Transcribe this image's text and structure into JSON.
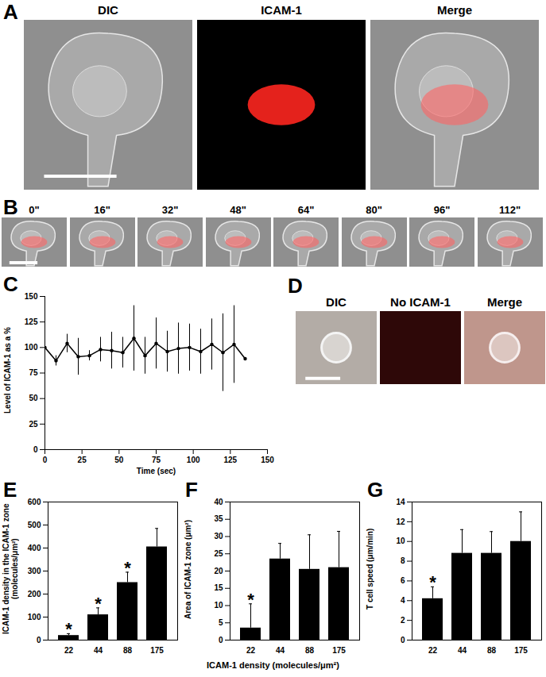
{
  "image_panels": [
    {
      "label": "A",
      "columns": [
        "DIC",
        "ICAM-1",
        "Merge"
      ]
    },
    {
      "label": "B",
      "times": [
        "0\"",
        "16\"",
        "32\"",
        "48\"",
        "64\"",
        "80\"",
        "96\"",
        "112\""
      ]
    },
    {
      "label": "D",
      "columns": [
        "DIC",
        "No ICAM-1",
        "Merge"
      ]
    }
  ],
  "chart_data": [
    {
      "type": "line",
      "title": "C",
      "x_label": "Time (sec)",
      "y_label": "Level of ICAM-1 as a %",
      "x": [
        0,
        7.5,
        15,
        22.5,
        30,
        37.5,
        45,
        52.5,
        60,
        67.5,
        75,
        82.5,
        90,
        97.5,
        105,
        112.5,
        120,
        127.5,
        135
      ],
      "values": [
        100,
        87,
        104,
        91,
        92,
        98,
        97,
        95,
        109,
        92,
        104,
        96,
        99,
        100,
        96,
        103,
        95,
        103,
        89
      ],
      "errors": [
        0,
        5,
        9,
        18,
        5,
        12,
        18,
        15,
        32,
        18,
        25,
        20,
        25,
        23,
        22,
        25,
        38,
        38,
        0
      ],
      "xlim": [
        0,
        150
      ],
      "xticks": [
        0,
        25,
        50,
        75,
        100,
        125,
        150
      ],
      "ylim": [
        0,
        150
      ],
      "yticks": [
        0,
        25,
        50,
        75,
        100,
        125,
        150
      ],
      "color": "#000000",
      "marker": "dot"
    },
    {
      "type": "bar",
      "title": "E",
      "y_label": "ICAM-1 density in the ICAM-1 zone (molecules/μm²)",
      "categories": [
        "22",
        "44",
        "88",
        "175"
      ],
      "values": [
        20,
        110,
        250,
        405
      ],
      "errors": [
        8,
        30,
        45,
        80
      ],
      "ylim": [
        0,
        600
      ],
      "yticks": [
        0,
        100,
        200,
        300,
        400,
        500,
        600
      ],
      "color": "#000000",
      "annotations": [
        {
          "category": "22",
          "text": "*"
        },
        {
          "category": "44",
          "text": "*"
        },
        {
          "category": "88",
          "text": "*"
        }
      ]
    },
    {
      "type": "bar",
      "title": "F",
      "y_label": "Area of ICAM-1 zone (μm²)",
      "x_label": "ICAM-1 density (molecules/μm²)",
      "categories": [
        "22",
        "44",
        "88",
        "175"
      ],
      "values": [
        3.5,
        23.5,
        20.5,
        21
      ],
      "errors": [
        7,
        4.5,
        10,
        10.5
      ],
      "ylim": [
        0,
        40
      ],
      "yticks": [
        0,
        5,
        10,
        15,
        20,
        25,
        30,
        35,
        40
      ],
      "color": "#000000",
      "annotations": [
        {
          "category": "22",
          "text": "*"
        }
      ]
    },
    {
      "type": "bar",
      "title": "G",
      "y_label": "T cell speed (μm/min)",
      "categories": [
        "22",
        "44",
        "88",
        "175"
      ],
      "values": [
        4.2,
        8.8,
        8.8,
        10
      ],
      "errors": [
        1.2,
        2.4,
        2.2,
        3
      ],
      "ylim": [
        0,
        14
      ],
      "yticks": [
        0,
        2,
        4,
        6,
        8,
        10,
        12,
        14
      ],
      "color": "#000000",
      "annotations": [
        {
          "category": "22",
          "text": "*"
        }
      ]
    }
  ]
}
